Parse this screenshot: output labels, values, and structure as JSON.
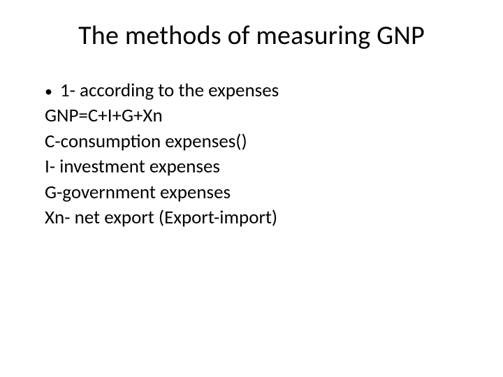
{
  "slide": {
    "title": "The methods of measuring GNP",
    "bullet_marker": "•",
    "lines": [
      "1- according to the expenses",
      "GNP=C+I+G+Xn",
      "C-consumption expenses()",
      "I- investment expenses",
      "G-government expenses",
      "Xn- net export (Export-import)"
    ]
  },
  "style": {
    "background_color": "#ffffff",
    "text_color": "#000000",
    "title_fontsize": 38,
    "body_fontsize": 27,
    "font_family": "Calibri"
  }
}
